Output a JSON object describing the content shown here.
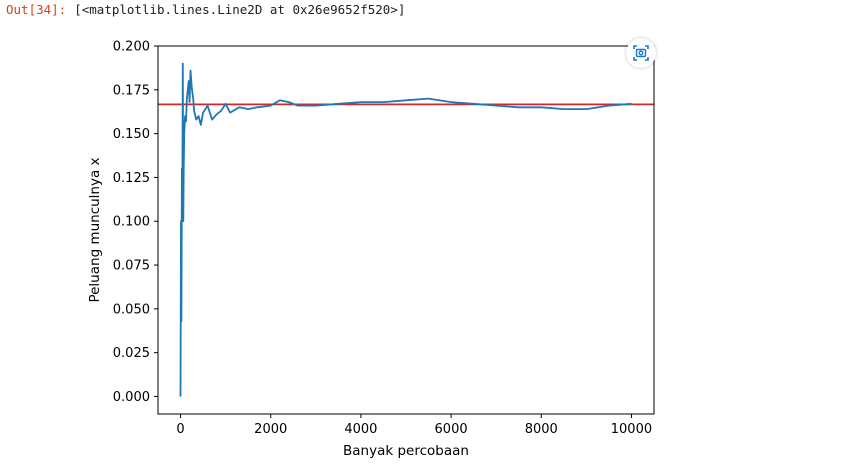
{
  "cell": {
    "prompt": "Out[34]:",
    "output_text": "[<matplotlib.lines.Line2D at 0x26e9652f520>]"
  },
  "toolbar": {
    "screenshot_icon": "camera-icon"
  },
  "colors": {
    "series": "#1f77b4",
    "reference": "#d62728",
    "prompt": "#d84315"
  },
  "chart_data": {
    "type": "line",
    "title": "",
    "xlabel": "Banyak percobaan",
    "ylabel": "Peluang munculnya x",
    "xlim": [
      -500,
      10500
    ],
    "ylim": [
      -0.01,
      0.2
    ],
    "xticks": [
      "0",
      "2000",
      "4000",
      "6000",
      "8000",
      "10000"
    ],
    "yticks": [
      "0.000",
      "0.025",
      "0.050",
      "0.075",
      "0.100",
      "0.125",
      "0.150",
      "0.175",
      "0.200"
    ],
    "grid": false,
    "series": [
      {
        "x": [
          0,
          10,
          20,
          30,
          40,
          50,
          60,
          70,
          80,
          100,
          120,
          140,
          160,
          180,
          200,
          220,
          250,
          280,
          300,
          350,
          400,
          450,
          500,
          600,
          700,
          800,
          900,
          1000,
          1100,
          1300,
          1500,
          1700,
          2000,
          2200,
          2400,
          2600,
          3000,
          3500,
          4000,
          4500,
          5000,
          5500,
          6000,
          6500,
          7000,
          7500,
          8000,
          8500,
          9000,
          9500,
          10000
        ],
        "values": [
          0.0,
          0.1,
          0.043,
          0.13,
          0.105,
          0.19,
          0.1,
          0.13,
          0.15,
          0.16,
          0.157,
          0.17,
          0.175,
          0.18,
          0.168,
          0.186,
          0.176,
          0.17,
          0.163,
          0.158,
          0.16,
          0.155,
          0.162,
          0.166,
          0.158,
          0.161,
          0.163,
          0.167,
          0.162,
          0.165,
          0.164,
          0.165,
          0.166,
          0.169,
          0.168,
          0.166,
          0.166,
          0.167,
          0.168,
          0.168,
          0.169,
          0.17,
          0.168,
          0.167,
          0.166,
          0.165,
          0.165,
          0.164,
          0.164,
          0.166,
          0.167
        ]
      }
    ],
    "reference_line": {
      "y": 0.1667
    }
  }
}
